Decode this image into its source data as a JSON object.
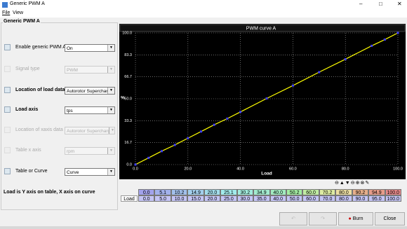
{
  "window": {
    "title": "Generic PWM A"
  },
  "menu": [
    "File",
    "View"
  ],
  "panel": {
    "title": "Generic PWM A",
    "rows": [
      {
        "label": "Enable generic PWM A",
        "value": "On",
        "enabled": true
      },
      {
        "label": "Signal type",
        "value": "PWM",
        "enabled": false
      },
      {
        "label": "Location of load data",
        "value": "Autorotor Supercharger",
        "enabled": true
      },
      {
        "label": "Load axis",
        "value": "tps",
        "enabled": true
      },
      {
        "label": "Location of xaxis data",
        "value": "Autorotor Supercharger",
        "enabled": false
      },
      {
        "label": "Table x axis",
        "value": "rpm",
        "enabled": false
      },
      {
        "label": "Table or Curve",
        "value": "Curve",
        "enabled": true
      }
    ],
    "note": "Load is Y axis on table, X axis on curve"
  },
  "curve": {
    "type": "line",
    "title": "PWM curve A",
    "x_label": "Load",
    "y_label": "%",
    "x": [
      0,
      5,
      10,
      15,
      20,
      25,
      30,
      35,
      40,
      50,
      60,
      70,
      80,
      90,
      95,
      100
    ],
    "x_labels": [
      "0.0",
      "5.0",
      "10.0",
      "15.0",
      "20.0",
      "25.0",
      "30.0",
      "35.0",
      "40.0",
      "50.0",
      "60.0",
      "70.0",
      "80.0",
      "90.0",
      "95.0",
      "100.0"
    ],
    "values": [
      0,
      5.1,
      10.2,
      14.9,
      20,
      25.1,
      30.2,
      34.9,
      40,
      50.2,
      60,
      70.2,
      80,
      90.2,
      94.9,
      100
    ],
    "value_labels": [
      "0.0",
      "5.1",
      "10.2",
      "14.9",
      "20.0",
      "25.1",
      "30.2",
      "34.9",
      "40.0",
      "50.2",
      "60.0",
      "70.2",
      "80.0",
      "90.2",
      "94.9",
      "100.0"
    ],
    "line_color": "#ffff00",
    "point_color": "#4040ff",
    "grid": true,
    "xlim": [
      0,
      100
    ],
    "ylim": [
      0,
      100
    ],
    "xticks": [
      {
        "value": 0,
        "label": "0.0"
      },
      {
        "value": 20,
        "label": "20.0"
      },
      {
        "value": 40,
        "label": "40.0"
      },
      {
        "value": 60,
        "label": "60.0"
      },
      {
        "value": 80,
        "label": "80.0"
      },
      {
        "value": 100,
        "label": "100.0"
      }
    ],
    "yticks": [
      {
        "value": 0,
        "label": "0.0"
      },
      16.7,
      33.3,
      {
        "value": 50,
        "label": "50.0"
      },
      66.7,
      83.3,
      {
        "value": 100,
        "label": "100.0"
      }
    ],
    "table_row_label": "Load"
  },
  "buttons": {
    "burn": "Burn",
    "close": "Close"
  }
}
